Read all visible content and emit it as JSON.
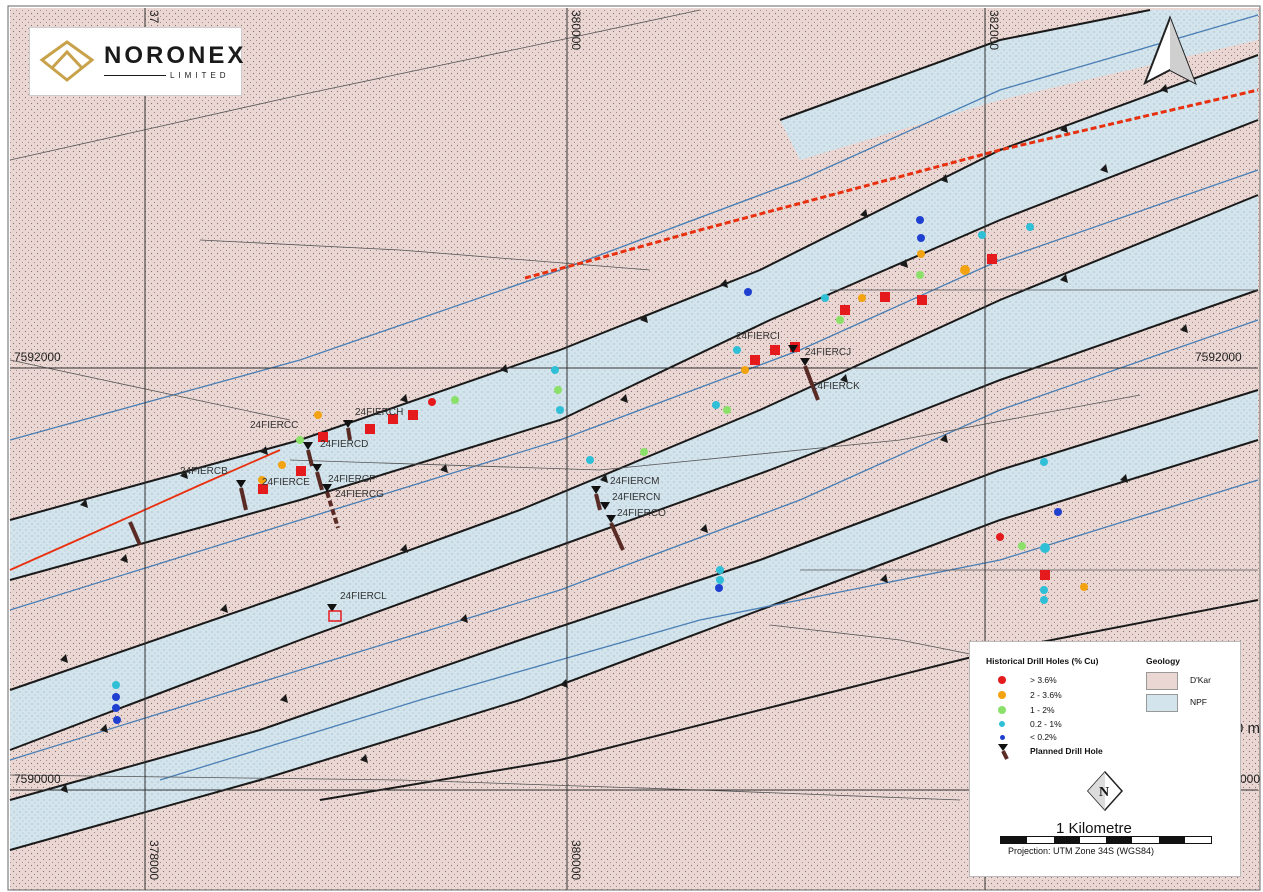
{
  "logo": {
    "name": "NORONEX",
    "subtitle": "LIMITED"
  },
  "grid_labels": {
    "easting": [
      "378000",
      "380000",
      "382000"
    ],
    "northing": [
      "7592000",
      "7590000"
    ],
    "partial_left_top": "37",
    "partial_right_1": "0 m",
    "partial_right_2": "000",
    "partial_bottom_right": "00"
  },
  "planned_holes": [
    "24FIERCB",
    "24FIERCC",
    "24FIERCD",
    "24FIERCE",
    "24FIERCF",
    "24FIERCG",
    "24FIERCH",
    "24FIERCI",
    "24FIERCJ",
    "24FIERCK",
    "24FIERCL",
    "24FIERCM",
    "24FIERCN",
    "24FIERCO"
  ],
  "legend": {
    "drill_title": "Historical Drill Holes (% Cu)",
    "ranges": [
      {
        "label": "> 3.6%",
        "color": "#e41a1c"
      },
      {
        "label": "2 - 3.6%",
        "color": "#f2a30f"
      },
      {
        "label": "1 - 2%",
        "color": "#8be06a"
      },
      {
        "label": "0.2 - 1%",
        "color": "#2fbfd6"
      },
      {
        "label": "< 0.2%",
        "color": "#1e3fd0"
      }
    ],
    "planned_label": "Planned Drill Hole",
    "geology_title": "Geology",
    "units": [
      {
        "label": "D'Kar",
        "color": "#ead7d3"
      },
      {
        "label": "NPF",
        "color": "#d3e4ec"
      }
    ]
  },
  "scale": {
    "label": "1 Kilometre",
    "projection": "Projection: UTM Zone 34S (WGS84)"
  },
  "north_arrow": "north-arrow-icon",
  "colors": {
    "dkar": "#ead7d3",
    "npf": "#cfe2ea",
    "fault": "#1a1a1a",
    "blue_contact": "#4a7fb5",
    "red_feature": "#e8300f",
    "planned": "#5a2a25"
  }
}
